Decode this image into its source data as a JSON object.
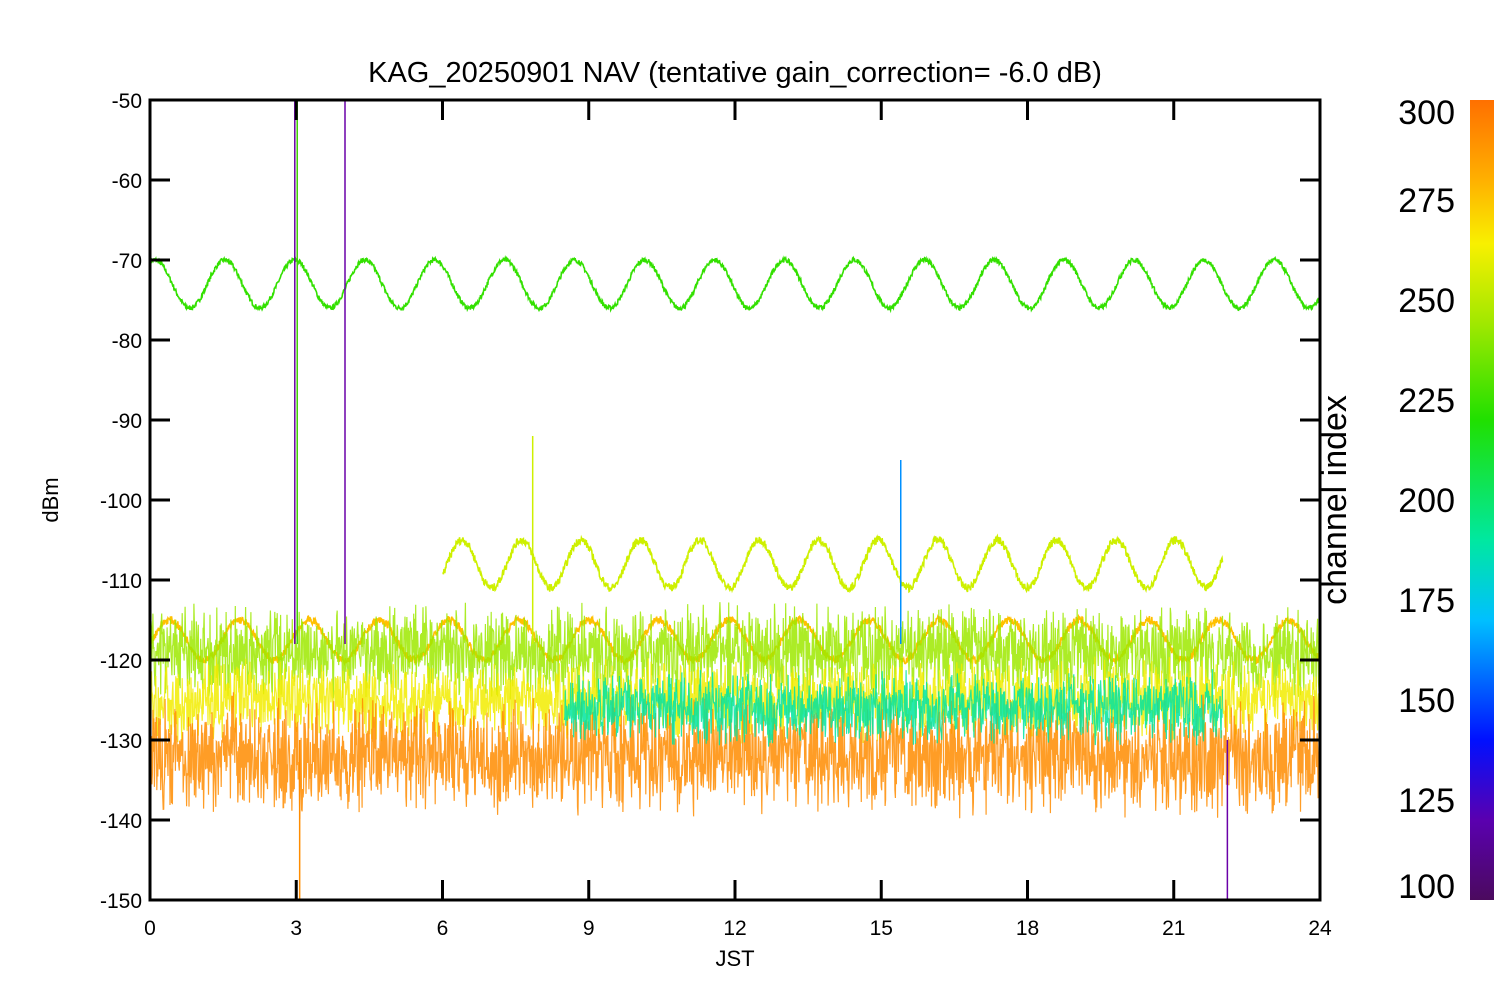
{
  "chart_data": {
    "type": "line",
    "title": "KAG_20250901 NAV (tentative gain_correction= -6.0 dB)",
    "xlabel": "JST",
    "ylabel": "dBm",
    "xlim": [
      0,
      24
    ],
    "ylim": [
      -150,
      -50
    ],
    "x_ticks": [
      "0",
      "3",
      "6",
      "9",
      "12",
      "15",
      "18",
      "21",
      "24"
    ],
    "y_ticks": [
      "-50",
      "-60",
      "-70",
      "-80",
      "-90",
      "-100",
      "-110",
      "-120",
      "-130",
      "-140",
      "-150"
    ],
    "grid": false,
    "colorbar": {
      "label": "channel index",
      "range": [
        100,
        300
      ],
      "ticks": [
        "300",
        "275",
        "250",
        "225",
        "200",
        "175",
        "150",
        "125",
        "100"
      ],
      "colormap": "rainbow"
    },
    "series": [
      {
        "channel_index": 240,
        "color": "#33e000",
        "x_start": 0,
        "x_end": 24,
        "center_dbm": -73,
        "amplitude_db": 3,
        "period_hours": 1.435,
        "phase_hours": 0.1,
        "noise_db": 0.3
      },
      {
        "channel_index": 265,
        "color": "#cef000",
        "x_start": 6,
        "x_end": 22,
        "center_dbm": -108,
        "amplitude_db": 3,
        "period_hours": 1.22,
        "phase_hours": 6.4,
        "noise_db": 0.5
      },
      {
        "channel_index": 282,
        "color": "#ffc000",
        "x_start": 0,
        "x_end": 24,
        "center_dbm": -117.5,
        "amplitude_db": 2.5,
        "period_hours": 1.435,
        "phase_hours": 0.4,
        "noise_db": 0.5
      },
      {
        "channel_index": 245,
        "color": "#9ee900",
        "x_start": 0,
        "x_end": 24,
        "center_dbm": -119,
        "amplitude_db": 4,
        "noise_db": 2.5
      },
      {
        "channel_index": 270,
        "color": "#f2ec00",
        "x_start": 0,
        "x_end": 24,
        "center_dbm": -125,
        "amplitude_db": 3,
        "noise_db": 2.5
      },
      {
        "channel_index": 295,
        "color": "#ff8c00",
        "x_start": 0,
        "x_end": 24,
        "center_dbm": -132,
        "amplitude_db": 5,
        "noise_db": 3
      },
      {
        "channel_index": 190,
        "color": "#00e4a0",
        "x_start": 8.5,
        "x_end": 22,
        "center_dbm": -126,
        "amplitude_db": 3,
        "noise_db": 2
      }
    ],
    "spikes": [
      {
        "x": 2.97,
        "y_top": -50,
        "color": "#6a00a8"
      },
      {
        "x": 3.02,
        "y_top": -50,
        "color": "#3fd000"
      },
      {
        "x": 3.07,
        "y_top": -150,
        "color": "#ff8c00"
      },
      {
        "x": 4.0,
        "y_top": -50,
        "color": "#6a00a8"
      },
      {
        "x": 7.85,
        "y_top": -92,
        "color": "#cef000"
      },
      {
        "x": 15.4,
        "y_top": -95,
        "color": "#0090ff"
      },
      {
        "x": 22.1,
        "y_top": -150,
        "color": "#6a00a8"
      }
    ]
  }
}
